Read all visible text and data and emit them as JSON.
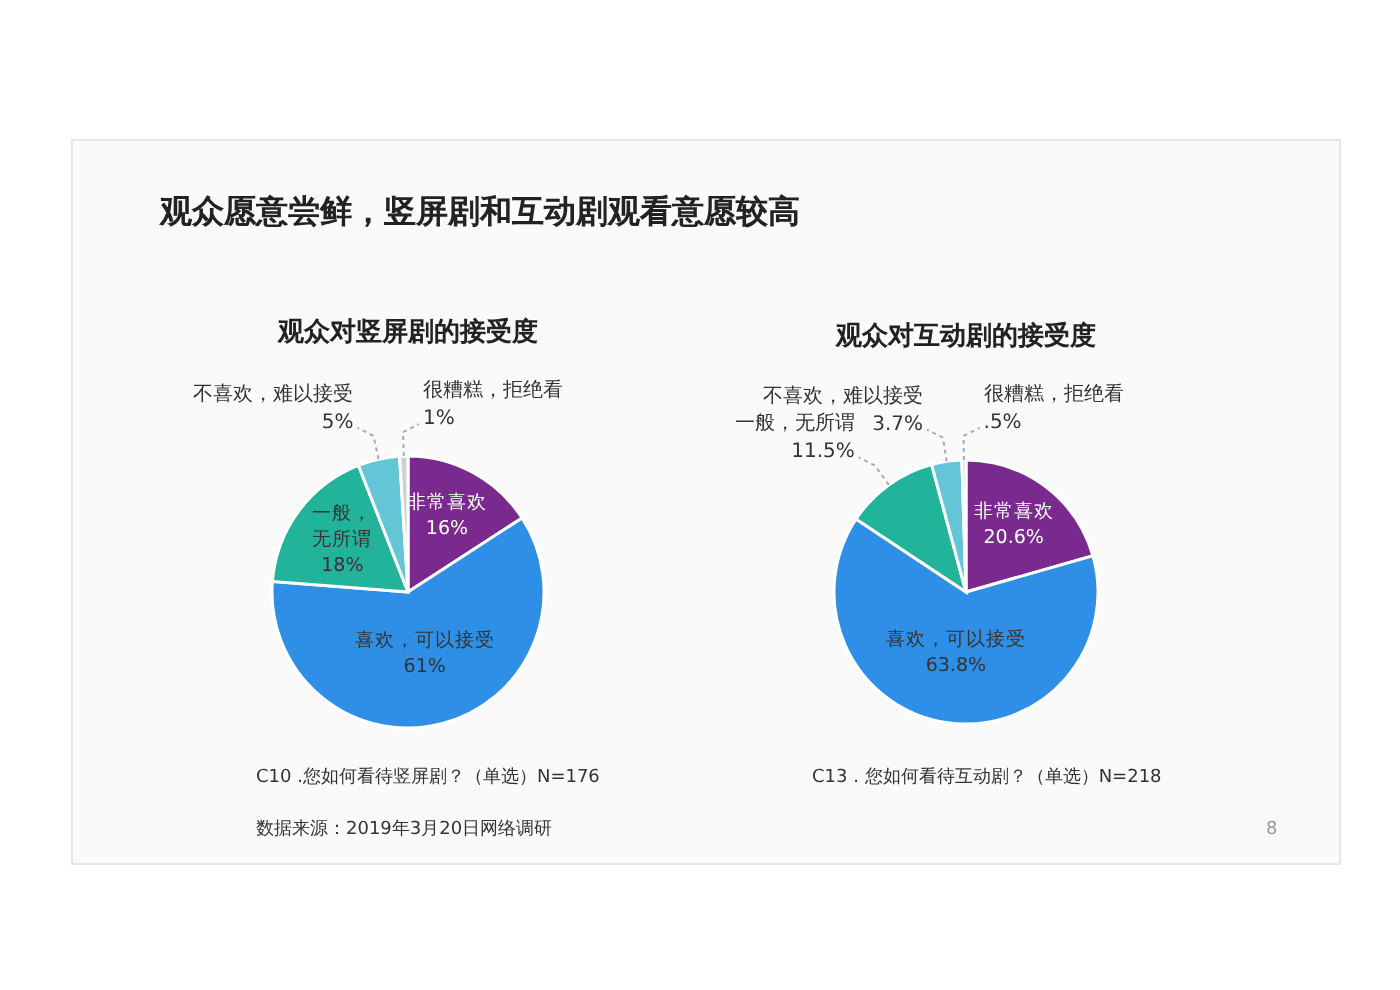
{
  "chart_data": [
    {
      "type": "pie",
      "title": "观众对竖屏剧的接受度",
      "categories": [
        "非常喜欢",
        "喜欢，可以接受",
        "一般，无所谓",
        "不喜欢，难以接受",
        "很糟糕，拒绝看"
      ],
      "values": [
        16,
        61,
        18,
        5,
        1
      ],
      "value_labels": [
        "16%",
        "61%",
        "18%",
        "5%",
        "1%"
      ],
      "colors": [
        "#7a2a8e",
        "#2f8fe6",
        "#22b49a",
        "#62c6d6",
        "#d0d0d0"
      ],
      "annotations": [
        "观众愿意尝鲜，竖屏剧和互动剧观看意愿较高",
        "C10 .您如何看待竖屏剧？（单选）N=176",
        "数据来源：2019年3月20日网络调研"
      ]
    },
    {
      "type": "pie",
      "title": "观众对互动剧的接受度",
      "categories": [
        "非常喜欢",
        "喜欢，可以接受",
        "一般，无所谓",
        "不喜欢，难以接受",
        "很糟糕，拒绝看"
      ],
      "values": [
        20.6,
        63.8,
        11.5,
        3.7,
        0.5
      ],
      "value_labels": [
        "20.6%",
        "63.8%",
        "11.5%",
        "3.7%",
        ".5%"
      ],
      "colors": [
        "#7a2a8e",
        "#2f8fe6",
        "#22b49a",
        "#62c6d6",
        "#d0d0d0"
      ],
      "annotations": [
        "C13 . 您如何看待互动剧？（单选）N=218",
        "8"
      ]
    }
  ]
}
